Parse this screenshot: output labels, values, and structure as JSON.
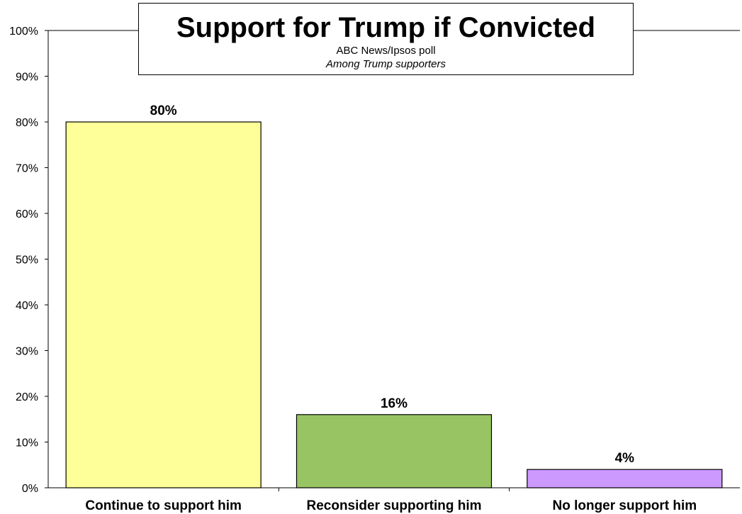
{
  "chart_data": {
    "type": "bar",
    "title": "Support for Trump if Convicted",
    "subtitle": "ABC News/Ipsos poll",
    "subtitle2": "Among Trump supporters",
    "categories": [
      "Continue to support him",
      "Reconsider supporting him",
      "No longer support him"
    ],
    "values": [
      80,
      16,
      4
    ],
    "data_labels": [
      "80%",
      "16%",
      "4%"
    ],
    "colors": [
      "#FFFF99",
      "#99C463",
      "#CC99FF"
    ],
    "yticks": [
      "0%",
      "10%",
      "20%",
      "30%",
      "40%",
      "50%",
      "60%",
      "70%",
      "80%",
      "90%",
      "100%"
    ],
    "ylim": [
      0,
      100
    ],
    "xlabel": "",
    "ylabel": "",
    "grid": false,
    "legend": "none"
  }
}
